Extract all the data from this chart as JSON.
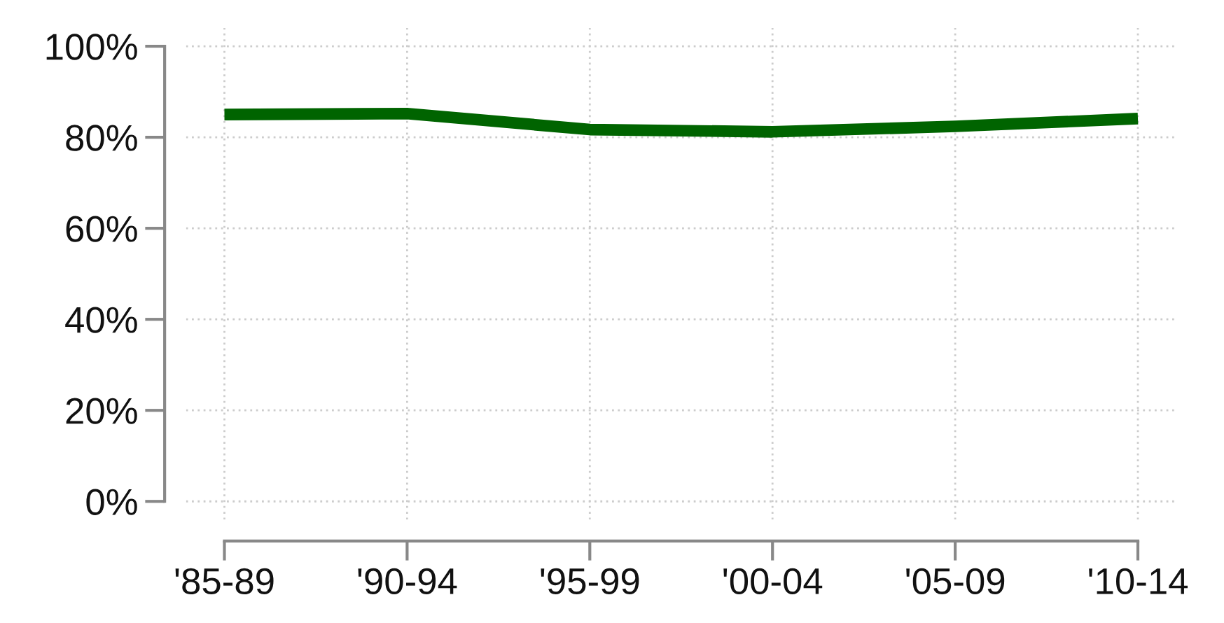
{
  "chart_data": {
    "type": "line",
    "categories": [
      "'85-89",
      "'90-94",
      "'95-99",
      "'00-04",
      "'05-09",
      "'10-14"
    ],
    "series": [
      {
        "color": "#006400",
        "values": [
          85.0,
          85.2,
          81.7,
          81.2,
          82.4,
          84.1
        ]
      }
    ],
    "ylim": [
      -4,
      104
    ],
    "yticks": [
      {
        "value": 0,
        "label": "0%"
      },
      {
        "value": 20,
        "label": "20%"
      },
      {
        "value": 40,
        "label": "40%"
      },
      {
        "value": 60,
        "label": "60%"
      },
      {
        "value": 80,
        "label": "80%"
      },
      {
        "value": 100,
        "label": "100%"
      }
    ],
    "grid": true,
    "marker": "none",
    "line_style": "solid"
  }
}
